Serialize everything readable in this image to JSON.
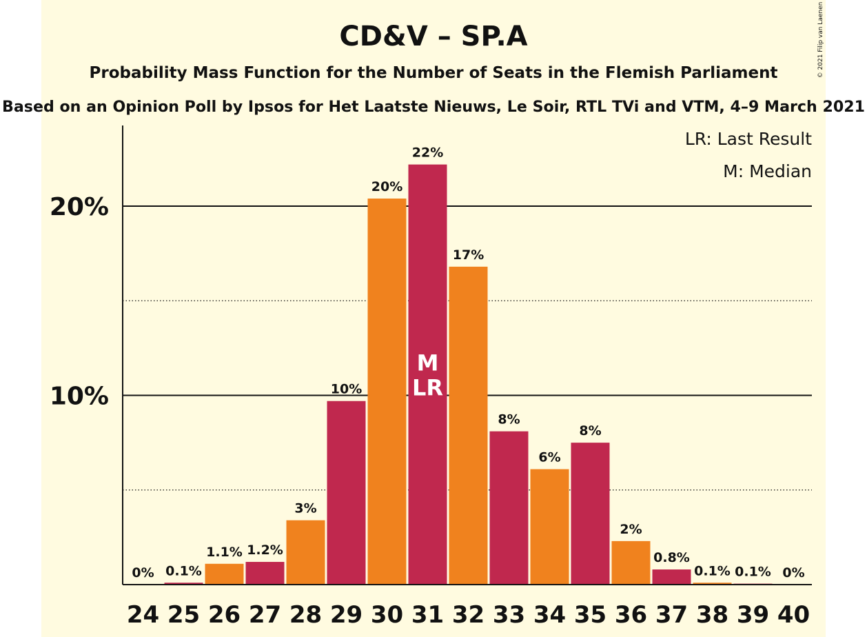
{
  "copyright": "© 2021 Filip van Laenen",
  "chart_data": {
    "type": "bar",
    "title": "CD&V – SP.A",
    "subtitle": "Probability Mass Function for the Number of Seats in the Flemish Parliament",
    "subtitle2": "Based on an Opinion Poll by Ipsos for Het Laatste Nieuws, Le Soir, RTL TVi and VTM, 4–9 March 2021",
    "categories": [
      "24",
      "25",
      "26",
      "27",
      "28",
      "29",
      "30",
      "31",
      "32",
      "33",
      "34",
      "35",
      "36",
      "37",
      "38",
      "39",
      "40"
    ],
    "values": [
      0,
      0.1,
      1.1,
      1.2,
      3.4,
      9.7,
      20.4,
      22.2,
      16.8,
      8.1,
      6.1,
      7.5,
      2.3,
      0.8,
      0.1,
      0.05,
      0
    ],
    "data_labels": [
      "0%",
      "0.1%",
      "1.1%",
      "1.2%",
      "3%",
      "10%",
      "20%",
      "22%",
      "17%",
      "8%",
      "6%",
      "8%",
      "2%",
      "0.8%",
      "0.1%",
      "0.1%",
      "0%"
    ],
    "colors": [
      "#f0821e",
      "#c0284e"
    ],
    "ylim": [
      0,
      24
    ],
    "yticks": [
      {
        "value": 10,
        "label": "10%"
      },
      {
        "value": 20,
        "label": "20%"
      }
    ],
    "minor_gridlines": [
      5,
      15
    ],
    "legend": [
      "LR: Last Result",
      "M: Median"
    ],
    "legend_position": "top-right",
    "annotations": [
      {
        "category": "31",
        "lines": [
          "M",
          "LR"
        ]
      }
    ]
  }
}
